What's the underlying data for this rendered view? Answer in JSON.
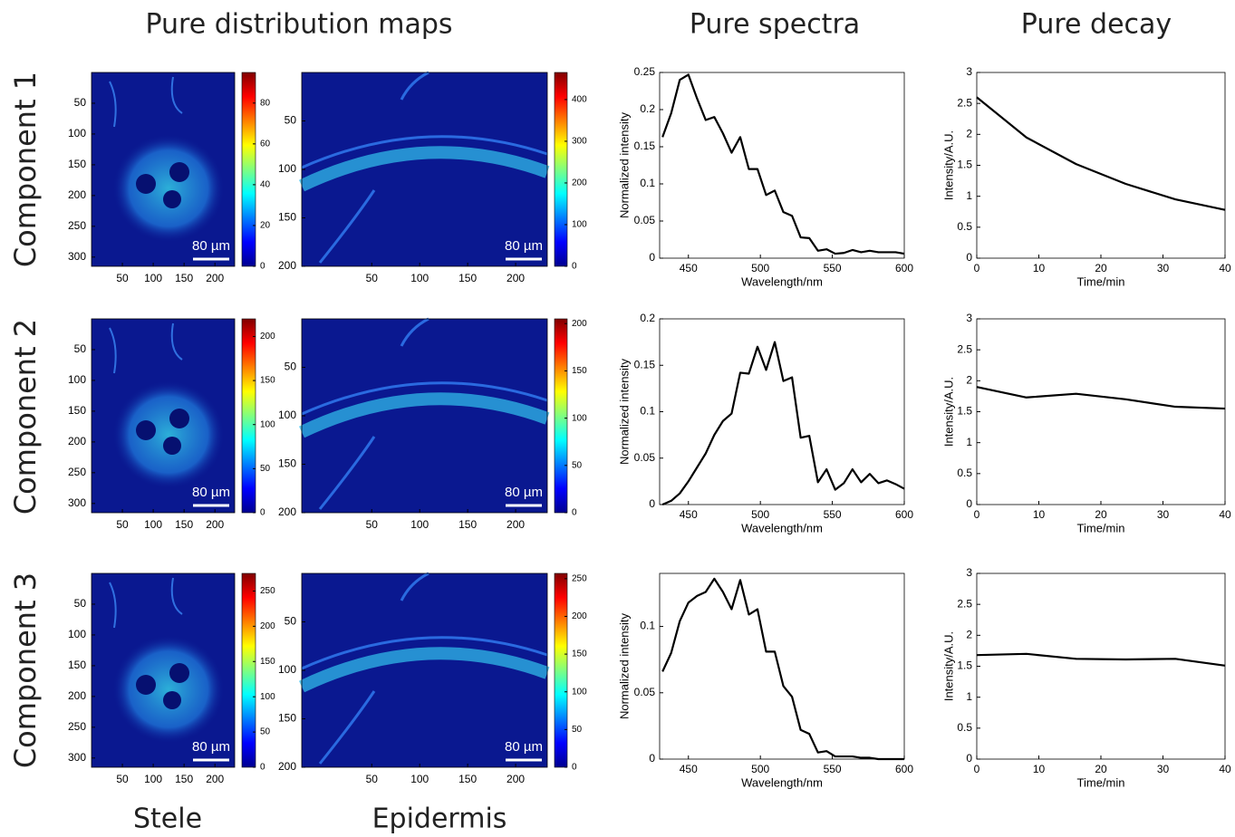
{
  "column_titles": [
    "Pure distribution maps",
    "Pure spectra",
    "Pure decay"
  ],
  "row_labels": [
    "Component 1",
    "Component 2",
    "Component 3"
  ],
  "bottom_labels": [
    "Stele",
    "Epidermis"
  ],
  "chart_data": [
    {
      "type": "heatmap",
      "xlim": [
        0,
        232
      ],
      "ylim": [
        0,
        315
      ],
      "xticks": [
        50,
        100,
        150,
        200
      ],
      "yticks": [
        50,
        100,
        150,
        200,
        250,
        300
      ],
      "clim": [
        0,
        95
      ],
      "cticks": [
        0,
        20,
        40,
        60,
        80
      ],
      "scale_bar": "80 µm"
    },
    {
      "type": "heatmap",
      "xlim": [
        -23,
        233
      ],
      "ylim": [
        0,
        200
      ],
      "xticks": [
        50,
        100,
        150,
        200
      ],
      "yticks": [
        50,
        100,
        150,
        200
      ],
      "clim": [
        0,
        465
      ],
      "cticks": [
        0,
        100,
        200,
        300,
        400
      ],
      "scale_bar": "80 µm"
    },
    {
      "type": "line",
      "xlabel": "Wavelength/nm",
      "ylabel": "Normalized intensity",
      "xlim": [
        430,
        600
      ],
      "ylim": [
        0,
        0.25
      ],
      "xticks": [
        450,
        500,
        550,
        600
      ],
      "yticks": [
        0,
        0.05,
        0.1,
        0.15,
        0.2,
        0.25
      ],
      "color": "#000000",
      "x": [
        432,
        438,
        444,
        450,
        456,
        462,
        468,
        474,
        480,
        486,
        492,
        498,
        504,
        510,
        516,
        522,
        528,
        534,
        540,
        546,
        552,
        558,
        564,
        570,
        576,
        582,
        588,
        594,
        600
      ],
      "values": [
        0.163,
        0.195,
        0.24,
        0.247,
        0.215,
        0.186,
        0.19,
        0.168,
        0.142,
        0.163,
        0.12,
        0.12,
        0.085,
        0.091,
        0.062,
        0.057,
        0.028,
        0.027,
        0.01,
        0.012,
        0.006,
        0.007,
        0.011,
        0.008,
        0.01,
        0.008,
        0.008,
        0.008,
        0.006
      ]
    },
    {
      "type": "line",
      "xlabel": "Time/min",
      "ylabel": "Intensity/A.U.",
      "xlim": [
        0,
        40
      ],
      "ylim": [
        0,
        3
      ],
      "xticks": [
        0,
        10,
        20,
        30,
        40
      ],
      "yticks": [
        0,
        0.5,
        1,
        1.5,
        2,
        2.5,
        3
      ],
      "color": "#000000",
      "x": [
        0,
        8,
        16,
        24,
        32,
        40
      ],
      "values": [
        2.6,
        1.95,
        1.52,
        1.2,
        0.95,
        0.78
      ]
    },
    {
      "type": "heatmap",
      "xlim": [
        0,
        232
      ],
      "ylim": [
        0,
        315
      ],
      "xticks": [
        50,
        100,
        150,
        200
      ],
      "yticks": [
        50,
        100,
        150,
        200,
        250,
        300
      ],
      "clim": [
        0,
        220
      ],
      "cticks": [
        0,
        50,
        100,
        150,
        200
      ],
      "scale_bar": "80 µm"
    },
    {
      "type": "heatmap",
      "xlim": [
        -23,
        233
      ],
      "ylim": [
        0,
        200
      ],
      "xticks": [
        50,
        100,
        150,
        200
      ],
      "yticks": [
        50,
        100,
        150,
        200
      ],
      "clim": [
        0,
        205
      ],
      "cticks": [
        0,
        50,
        100,
        150,
        200
      ],
      "scale_bar": "80 µm"
    },
    {
      "type": "line",
      "xlabel": "Wavelength/nm",
      "ylabel": "Normalized intensity",
      "xlim": [
        430,
        600
      ],
      "ylim": [
        0,
        0.2
      ],
      "xticks": [
        450,
        500,
        550,
        600
      ],
      "yticks": [
        0,
        0.05,
        0.1,
        0.15,
        0.2
      ],
      "color": "#000000",
      "x": [
        432,
        438,
        444,
        450,
        456,
        462,
        468,
        474,
        480,
        486,
        492,
        498,
        504,
        510,
        516,
        522,
        528,
        534,
        540,
        546,
        552,
        558,
        564,
        570,
        576,
        582,
        588,
        594,
        600
      ],
      "values": [
        0,
        0.004,
        0.012,
        0.025,
        0.04,
        0.055,
        0.075,
        0.09,
        0.098,
        0.142,
        0.141,
        0.17,
        0.145,
        0.175,
        0.133,
        0.137,
        0.072,
        0.074,
        0.024,
        0.038,
        0.016,
        0.023,
        0.038,
        0.024,
        0.033,
        0.023,
        0.026,
        0.022,
        0.017
      ]
    },
    {
      "type": "line",
      "xlabel": "Time/min",
      "ylabel": "Intensity/A.U.",
      "xlim": [
        0,
        40
      ],
      "ylim": [
        0,
        3
      ],
      "xticks": [
        0,
        10,
        20,
        30,
        40
      ],
      "yticks": [
        0,
        0.5,
        1,
        1.5,
        2,
        2.5,
        3
      ],
      "color": "#000000",
      "x": [
        0,
        8,
        16,
        24,
        32,
        40
      ],
      "values": [
        1.9,
        1.73,
        1.79,
        1.7,
        1.58,
        1.55
      ]
    },
    {
      "type": "heatmap",
      "xlim": [
        0,
        232
      ],
      "ylim": [
        0,
        315
      ],
      "xticks": [
        50,
        100,
        150,
        200
      ],
      "yticks": [
        50,
        100,
        150,
        200,
        250,
        300
      ],
      "clim": [
        0,
        275
      ],
      "cticks": [
        0,
        50,
        100,
        150,
        200,
        250
      ],
      "scale_bar": "80 µm"
    },
    {
      "type": "heatmap",
      "xlim": [
        -23,
        233
      ],
      "ylim": [
        0,
        200
      ],
      "xticks": [
        50,
        100,
        150,
        200
      ],
      "yticks": [
        50,
        100,
        150,
        200
      ],
      "clim": [
        0,
        257
      ],
      "cticks": [
        0,
        50,
        100,
        150,
        200,
        250
      ],
      "scale_bar": "80 µm"
    },
    {
      "type": "line",
      "xlabel": "Wavelength/nm",
      "ylabel": "Normalized intensity",
      "xlim": [
        430,
        600
      ],
      "ylim": [
        0,
        0.14
      ],
      "xticks": [
        450,
        500,
        550,
        600
      ],
      "yticks": [
        0,
        0.05,
        0.1
      ],
      "color": "#000000",
      "x": [
        432,
        438,
        444,
        450,
        456,
        462,
        468,
        474,
        480,
        486,
        492,
        498,
        504,
        510,
        516,
        522,
        528,
        534,
        540,
        546,
        552,
        558,
        564,
        570,
        576,
        582,
        588,
        594,
        600
      ],
      "values": [
        0.066,
        0.08,
        0.104,
        0.118,
        0.123,
        0.126,
        0.136,
        0.126,
        0.113,
        0.135,
        0.109,
        0.113,
        0.081,
        0.081,
        0.055,
        0.047,
        0.022,
        0.019,
        0.005,
        0.006,
        0.002,
        0.002,
        0.002,
        0.001,
        0.001,
        0,
        0,
        0,
        0
      ]
    },
    {
      "type": "line",
      "xlabel": "Time/min",
      "ylabel": "Intensity/A.U.",
      "xlim": [
        0,
        40
      ],
      "ylim": [
        0,
        3
      ],
      "xticks": [
        0,
        10,
        20,
        30,
        40
      ],
      "yticks": [
        0,
        0.5,
        1,
        1.5,
        2,
        2.5,
        3
      ],
      "color": "#000000",
      "x": [
        0,
        8,
        16,
        24,
        32,
        40
      ],
      "values": [
        1.68,
        1.7,
        1.62,
        1.61,
        1.62,
        1.51
      ]
    }
  ]
}
